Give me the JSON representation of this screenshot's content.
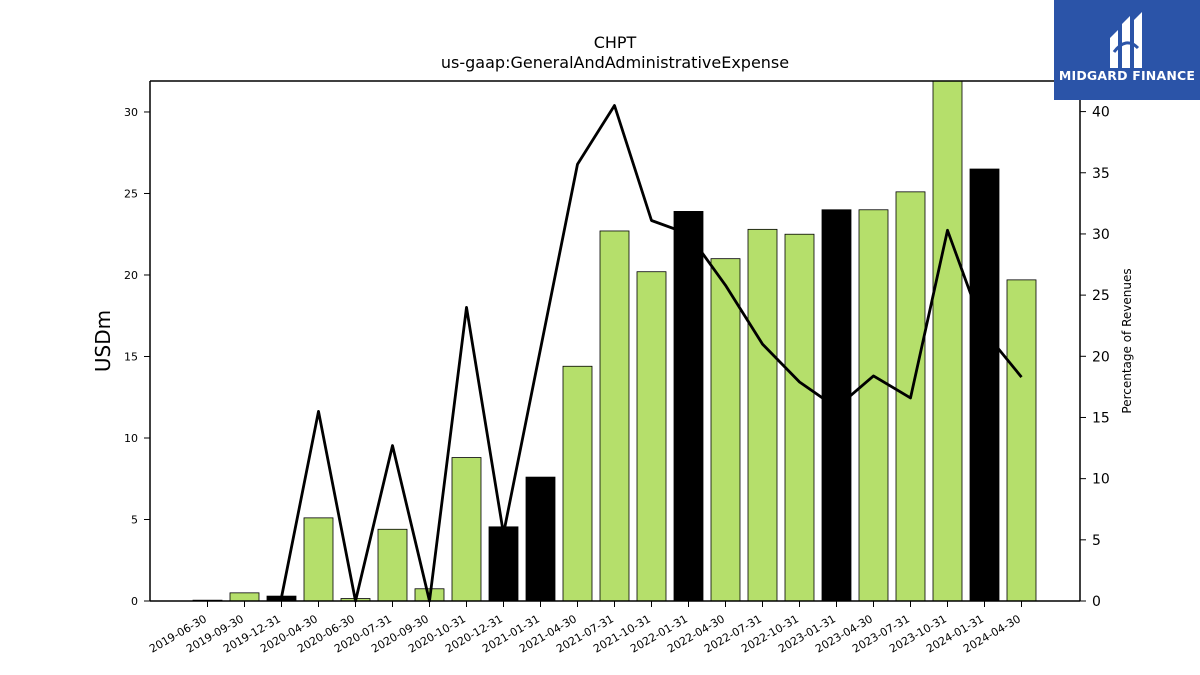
{
  "chart_data": {
    "type": "bar",
    "title": "CHPT",
    "subtitle": "us-gaap:GeneralAndAdministrativeExpense",
    "ylabel": "USDm",
    "y2label": "Percentage of Revenues",
    "ylim": [
      0,
      31.9
    ],
    "y2lim": [
      0,
      42.5
    ],
    "yticks": [
      0,
      5,
      10,
      15,
      20,
      25,
      30
    ],
    "y2ticks": [
      0,
      5,
      10,
      15,
      20,
      25,
      30,
      35,
      40
    ],
    "categories": [
      "2019-06-30",
      "2019-09-30",
      "2019-12-31",
      "2020-04-30",
      "2020-06-30",
      "2020-07-31",
      "2020-09-30",
      "2020-10-31",
      "2020-12-31",
      "2021-01-31",
      "2021-04-30",
      "2021-07-31",
      "2021-10-31",
      "2022-01-31",
      "2022-04-30",
      "2022-07-31",
      "2022-10-31",
      "2023-01-31",
      "2023-04-30",
      "2023-07-31",
      "2023-10-31",
      "2024-01-31",
      "2024-04-30"
    ],
    "series": [
      {
        "kind": "bar",
        "values": [
          0.05,
          0.5,
          0.3,
          5.1,
          0.15,
          4.4,
          0.75,
          8.8,
          4.55,
          7.6,
          14.4,
          22.7,
          20.2,
          23.9,
          21.0,
          22.8,
          22.5,
          24.0,
          24.0,
          25.1,
          31.9,
          26.5,
          19.7
        ],
        "highlight": [
          false,
          false,
          true,
          false,
          false,
          false,
          false,
          false,
          true,
          true,
          false,
          false,
          false,
          true,
          false,
          false,
          false,
          true,
          false,
          false,
          false,
          true,
          false
        ]
      },
      {
        "kind": "line",
        "axis": "right",
        "values": [
          null,
          null,
          0.3,
          15.5,
          0.0,
          12.7,
          0.0,
          24.0,
          5.5,
          null,
          35.7,
          40.5,
          31.1,
          30.0,
          25.8,
          21.0,
          17.9,
          15.8,
          18.4,
          16.6,
          30.3,
          22.0,
          18.3
        ]
      }
    ],
    "colors": {
      "bar": "#b5df6b",
      "highlight": "#000000",
      "line": "#000000"
    }
  },
  "logo": {
    "text": "MIDGARD FINANCE",
    "icon": "midgard-logo-icon",
    "bg": "#2b54a8"
  }
}
